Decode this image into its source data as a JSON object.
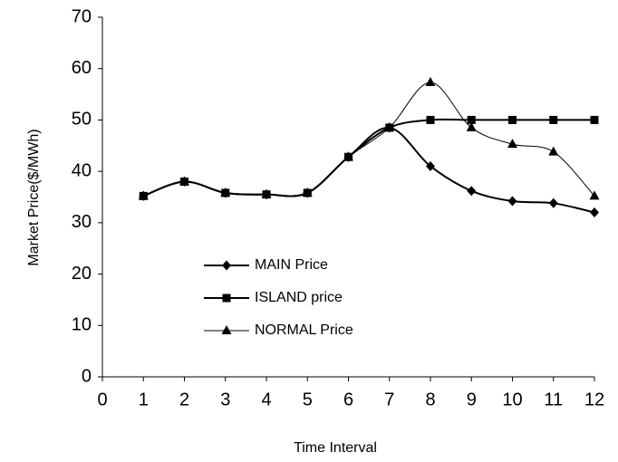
{
  "chart_data": {
    "type": "line",
    "x_label": "Time Interval",
    "y_label": "Market Price($/MWh)",
    "x": [
      1,
      2,
      3,
      4,
      5,
      6,
      7,
      8,
      9,
      10,
      11,
      12
    ],
    "series": [
      {
        "name": "MAIN Price",
        "color": "#000000",
        "marker": "diamond",
        "width": 2,
        "values": [
          35.2,
          38,
          35.8,
          35.5,
          35.8,
          42.8,
          48.5,
          41,
          36.2,
          34.2,
          33.8,
          32
        ]
      },
      {
        "name": "ISLAND price",
        "color": "#000000",
        "marker": "square",
        "width": 2,
        "values": [
          35.2,
          38,
          35.8,
          35.5,
          35.8,
          42.8,
          48.5,
          50,
          50,
          50,
          50,
          50
        ]
      },
      {
        "name": "NORMAL Price",
        "color": "#000000",
        "marker": "triangle",
        "width": 1,
        "values": [
          35.2,
          38,
          35.8,
          35.5,
          35.8,
          42.8,
          48.5,
          57.3,
          48.5,
          45.3,
          43.8,
          35.2
        ]
      }
    ],
    "xlim": [
      0,
      12
    ],
    "xticks": [
      0,
      1,
      2,
      3,
      4,
      5,
      6,
      7,
      8,
      9,
      10,
      11,
      12
    ],
    "ylim": [
      0,
      70
    ],
    "yticks": [
      0,
      10,
      20,
      30,
      40,
      50,
      60,
      70
    ],
    "grid": false,
    "smooth": true,
    "legend": "left"
  }
}
